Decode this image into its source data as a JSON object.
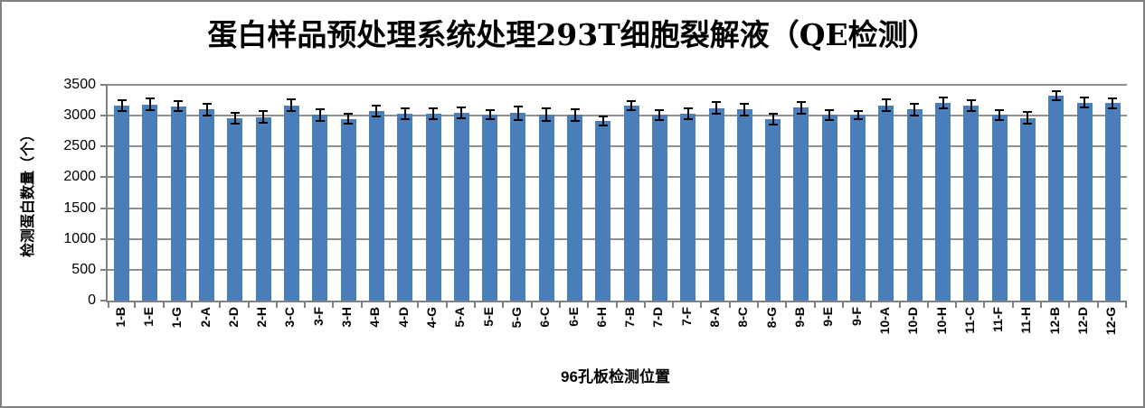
{
  "window": {
    "background": "#FFFFFF",
    "border_color": "#808080"
  },
  "chart_data": {
    "type": "bar",
    "title": "蛋白样品预处理系统处理293T细胞裂解液（QE检测）",
    "xlabel": "96孔板检测位置",
    "ylabel": "检测蛋白数量（个）",
    "categories": [
      "1-B",
      "1-E",
      "1-G",
      "2-A",
      "2-D",
      "2-H",
      "3-C",
      "3-F",
      "3-H",
      "4-B",
      "4-D",
      "4-G",
      "5-A",
      "5-E",
      "5-G",
      "6-C",
      "6-E",
      "6-H",
      "7-B",
      "7-D",
      "7-F",
      "8-A",
      "8-C",
      "8-G",
      "9-B",
      "9-E",
      "9-F",
      "10-A",
      "10-D",
      "10-H",
      "11-C",
      "11-F",
      "11-H",
      "12-B",
      "12-D",
      "12-G"
    ],
    "values": [
      3160,
      3180,
      3150,
      3100,
      2960,
      2980,
      3170,
      3010,
      2950,
      3080,
      3030,
      3030,
      3050,
      3020,
      3040,
      3020,
      3010,
      2910,
      3160,
      3010,
      3030,
      3120,
      3100,
      2940,
      3130,
      3010,
      3010,
      3170,
      3100,
      3210,
      3160,
      3010,
      2960,
      3320,
      3210,
      3200
    ],
    "errors": [
      100,
      110,
      95,
      110,
      100,
      105,
      105,
      105,
      100,
      100,
      100,
      100,
      105,
      90,
      120,
      115,
      110,
      90,
      90,
      95,
      100,
      110,
      110,
      100,
      110,
      90,
      85,
      105,
      110,
      100,
      105,
      90,
      110,
      90,
      95,
      95
    ],
    "ylim": [
      0,
      3500
    ],
    "yticks": [
      0,
      500,
      1000,
      1500,
      2000,
      2500,
      3000,
      3500
    ],
    "grid": true,
    "legend": "none",
    "bar_color": "#4A7EBB",
    "gridline_color": "#8F8F8F",
    "axis_color": "#808080",
    "error_bar_color": "#000000"
  }
}
